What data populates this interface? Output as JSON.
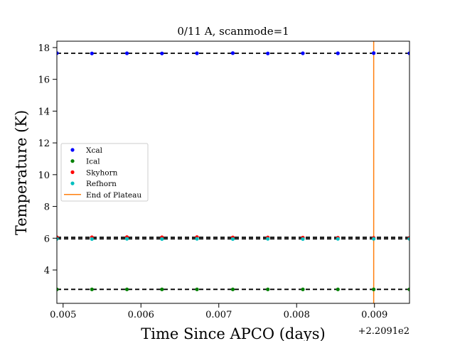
{
  "chart_data": {
    "type": "scatter",
    "title": "0/11 A, scanmode=1",
    "xlabel": "Time Since APCO (days)",
    "ylabel": "Temperature (K)",
    "x_offset_label": "+2.2091e2",
    "xlim": [
      0.00492,
      0.00945
    ],
    "ylim": [
      1.9,
      18.4
    ],
    "x_ticks": [
      0.005,
      0.006,
      0.007,
      0.008,
      0.009
    ],
    "x_tick_labels": [
      "0.005",
      "0.006",
      "0.007",
      "0.008",
      "0.009"
    ],
    "y_ticks": [
      4,
      6,
      8,
      10,
      12,
      14,
      16,
      18
    ],
    "y_tick_labels": [
      "4",
      "6",
      "8",
      "10",
      "12",
      "14",
      "16",
      "18"
    ],
    "x": [
      0.00492,
      0.00537,
      0.00582,
      0.00627,
      0.00672,
      0.00718,
      0.00763,
      0.00808,
      0.00853,
      0.00899,
      0.00945
    ],
    "series": [
      {
        "name": "Xcal",
        "color": "#0000ff",
        "values": [
          17.65,
          17.63,
          17.64,
          17.63,
          17.64,
          17.65,
          17.63,
          17.64,
          17.64,
          17.65,
          17.64
        ]
      },
      {
        "name": "Ical",
        "color": "#008000",
        "values": [
          2.78,
          2.78,
          2.78,
          2.78,
          2.78,
          2.78,
          2.78,
          2.78,
          2.78,
          2.78,
          2.78
        ]
      },
      {
        "name": "Skyhorn",
        "color": "#ff0000",
        "values": [
          6.06,
          6.06,
          6.07,
          6.06,
          6.07,
          6.05,
          6.05,
          6.04,
          6.03,
          6.02,
          6.02
        ]
      },
      {
        "name": "Refhorn",
        "color": "#00bfbf",
        "values": [
          5.96,
          5.95,
          5.96,
          5.95,
          5.96,
          5.95,
          5.96,
          5.95,
          5.96,
          5.96,
          5.96
        ]
      }
    ],
    "reference_lines": [
      17.64,
      6.06,
      5.96,
      2.78
    ],
    "vertical_line": {
      "name": "End of Plateau",
      "x": 0.00899,
      "color": "#ff7f0e"
    },
    "legend_position": "center-left",
    "grid": false
  }
}
